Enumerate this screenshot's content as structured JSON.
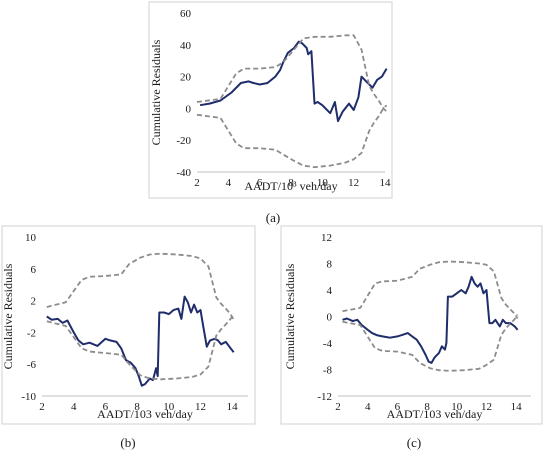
{
  "figure": {
    "captions": [
      "(a)",
      "(b)",
      "(c)"
    ]
  },
  "colors": {
    "series_line": "#1f2d6b",
    "bound_line": "#8c8c8c",
    "frame": "#d0d0d0",
    "text": "#1a1a1a"
  },
  "chart_data": [
    {
      "type": "line",
      "caption": "(a)",
      "xlabel": "AADT/10³ veh/day",
      "ylabel": "Cumulative Residuals",
      "xlim": [
        2,
        14
      ],
      "ylim": [
        -40,
        60
      ],
      "xticks": [
        2,
        4,
        6,
        8,
        10,
        12,
        14
      ],
      "yticks": [
        -40,
        -20,
        0,
        20,
        40,
        60
      ],
      "grid": false,
      "series": [
        {
          "style": "solid",
          "x": [
            2.2,
            2.8,
            3.5,
            4.2,
            4.8,
            5.3,
            5.6,
            6.0,
            6.5,
            7.0,
            7.3,
            7.5,
            7.8,
            8.2,
            8.5,
            8.7,
            9.0,
            9.1,
            9.3,
            9.5,
            9.7,
            10.0,
            10.5,
            10.8,
            11.0,
            11.3,
            11.7,
            12.0,
            12.3,
            12.5,
            12.8,
            13.2,
            13.5,
            13.8,
            14.1
          ],
          "y": [
            2,
            3,
            5,
            10,
            16,
            17,
            16,
            15,
            16,
            20,
            24,
            29,
            35,
            38,
            42,
            41,
            38,
            34,
            36,
            3,
            4,
            2,
            -3,
            4,
            -8,
            -2,
            3,
            -1,
            7,
            20,
            17,
            13,
            18,
            20,
            25
          ]
        },
        {
          "style": "dashed",
          "x": [
            2.0,
            3.5,
            4.5,
            5.0,
            6.0,
            7.0,
            7.5,
            8.2,
            8.8,
            9.5,
            10.5,
            11.5,
            12.0,
            12.5,
            13.0,
            13.3,
            13.6,
            13.9,
            14.1
          ],
          "y": [
            4,
            6,
            22,
            25,
            25,
            26,
            29,
            37,
            44,
            45,
            45,
            46,
            46,
            37,
            14,
            9,
            5,
            0,
            -2
          ]
        },
        {
          "style": "dashed",
          "x": [
            2.0,
            3.5,
            4.5,
            5.0,
            6.0,
            7.0,
            7.5,
            8.2,
            8.8,
            9.5,
            10.5,
            11.5,
            12.0,
            12.5,
            13.0,
            13.3,
            13.6,
            13.9,
            14.1
          ],
          "y": [
            -4,
            -6,
            -22,
            -25,
            -25,
            -26,
            -29,
            -33,
            -36,
            -37,
            -36,
            -34,
            -32,
            -28,
            -14,
            -9,
            -5,
            0,
            2
          ]
        }
      ]
    },
    {
      "type": "line",
      "caption": "(b)",
      "xlabel": "AADT/103 veh/day",
      "ylabel": "Cumulative Residuals",
      "xlim": [
        2,
        15
      ],
      "ylim": [
        -10,
        10
      ],
      "xticks": [
        2,
        4,
        6,
        8,
        10,
        12,
        14
      ],
      "yticks": [
        -10,
        -6,
        -2,
        2,
        6,
        10
      ],
      "grid": false,
      "series": [
        {
          "style": "solid",
          "x": [
            2.3,
            2.6,
            3.0,
            3.3,
            3.6,
            4.0,
            4.3,
            4.6,
            5.0,
            5.5,
            6.0,
            6.3,
            6.7,
            7.0,
            7.3,
            7.6,
            7.9,
            8.1,
            8.3,
            8.5,
            8.8,
            9.0,
            9.2,
            9.3,
            9.4,
            9.7,
            10.0,
            10.3,
            10.6,
            10.8,
            11.0,
            11.2,
            11.4,
            11.6,
            11.8,
            12.0,
            12.2,
            12.4,
            12.6,
            12.9,
            13.1,
            13.3,
            13.6,
            13.9,
            14.1
          ],
          "y": [
            0,
            -0.4,
            -0.3,
            -0.8,
            -0.5,
            -2.0,
            -3.0,
            -3.5,
            -3.3,
            -3.7,
            -2.8,
            -3.0,
            -3.2,
            -4.0,
            -5.5,
            -5.8,
            -6.5,
            -7.5,
            -8.7,
            -8.5,
            -7.8,
            -8.0,
            -6.5,
            -7.5,
            0.5,
            0.5,
            0.3,
            0.8,
            1.0,
            -0.3,
            2.5,
            1.8,
            0.5,
            1.5,
            0.5,
            0.8,
            -1.5,
            -3.8,
            -3.0,
            -2.8,
            -3.0,
            -3.5,
            -3.2,
            -4.0,
            -4.5
          ]
        },
        {
          "style": "dashed",
          "x": [
            2.3,
            3.5,
            4.5,
            5.0,
            6.0,
            7.0,
            7.5,
            8.2,
            8.8,
            9.5,
            10.5,
            11.5,
            12.0,
            12.5,
            13.0,
            13.3,
            13.6,
            13.9,
            14.1
          ],
          "y": [
            1.2,
            1.8,
            4.6,
            5.0,
            5.1,
            5.3,
            6.6,
            7.4,
            7.8,
            7.9,
            7.8,
            7.6,
            7.3,
            6.3,
            2.4,
            1.6,
            1.0,
            0.3,
            -0.4
          ]
        },
        {
          "style": "dashed",
          "x": [
            2.3,
            3.5,
            4.5,
            5.0,
            6.0,
            7.0,
            7.5,
            8.2,
            8.8,
            9.5,
            10.5,
            11.5,
            12.0,
            12.5,
            13.0,
            13.3,
            13.6,
            13.9,
            14.1
          ],
          "y": [
            -0.6,
            -1.2,
            -4.0,
            -4.4,
            -4.6,
            -4.8,
            -6.0,
            -7.4,
            -7.8,
            -7.9,
            -7.8,
            -7.6,
            -7.3,
            -6.3,
            -2.4,
            -1.6,
            -1.0,
            -0.3,
            0.4
          ]
        }
      ]
    },
    {
      "type": "line",
      "caption": "(c)",
      "xlabel": "AADT/103 veh/day",
      "ylabel": "Cumulative Residuals",
      "xlim": [
        2,
        15
      ],
      "ylim": [
        -12,
        12
      ],
      "xticks": [
        2,
        4,
        6,
        8,
        10,
        12,
        14
      ],
      "yticks": [
        -12,
        -8,
        -4,
        0,
        4,
        8,
        12
      ],
      "grid": false,
      "series": [
        {
          "style": "solid",
          "x": [
            2.3,
            2.6,
            3.0,
            3.3,
            3.6,
            4.0,
            4.3,
            4.6,
            5.0,
            5.5,
            6.0,
            6.3,
            6.7,
            7.0,
            7.3,
            7.6,
            7.9,
            8.1,
            8.3,
            8.5,
            8.8,
            9.0,
            9.2,
            9.3,
            9.4,
            9.7,
            10.0,
            10.3,
            10.6,
            10.8,
            11.0,
            11.2,
            11.4,
            11.6,
            11.8,
            12.0,
            12.2,
            12.4,
            12.6,
            12.9,
            13.1,
            13.3,
            13.6,
            13.9,
            14.1
          ],
          "y": [
            -0.5,
            -0.3,
            -0.7,
            -0.5,
            -1.3,
            -2.0,
            -2.5,
            -2.8,
            -3.0,
            -3.2,
            -3.0,
            -2.8,
            -2.5,
            -3.0,
            -3.5,
            -4.5,
            -5.8,
            -6.8,
            -7.0,
            -6.2,
            -5.5,
            -4.5,
            -5.0,
            -4.0,
            3.0,
            3.0,
            3.5,
            4.0,
            3.5,
            4.5,
            6.0,
            5.0,
            4.5,
            5.0,
            3.5,
            4.0,
            -1.0,
            -1.0,
            -0.5,
            -1.5,
            -0.5,
            -1.0,
            -1.0,
            -1.5,
            -2.0
          ]
        },
        {
          "style": "dashed",
          "x": [
            2.3,
            3.5,
            4.5,
            5.0,
            6.0,
            7.0,
            7.5,
            8.2,
            8.8,
            9.5,
            10.5,
            11.5,
            12.0,
            12.5,
            13.0,
            13.3,
            13.6,
            13.9,
            14.1
          ],
          "y": [
            0.8,
            1.3,
            5.0,
            5.3,
            5.4,
            6.0,
            7.2,
            7.8,
            8.2,
            8.3,
            8.2,
            8.0,
            7.8,
            6.8,
            2.8,
            1.8,
            1.1,
            0.4,
            -0.3
          ]
        },
        {
          "style": "dashed",
          "x": [
            2.3,
            3.5,
            4.5,
            5.0,
            6.0,
            7.0,
            7.5,
            8.2,
            8.8,
            9.5,
            10.5,
            11.5,
            12.0,
            12.5,
            13.0,
            13.3,
            13.6,
            13.9,
            14.1
          ],
          "y": [
            -0.8,
            -1.3,
            -4.8,
            -5.2,
            -5.3,
            -5.8,
            -7.0,
            -7.8,
            -8.1,
            -8.2,
            -8.1,
            -7.9,
            -7.3,
            -6.5,
            -2.8,
            -1.8,
            -1.1,
            -0.4,
            0.3
          ]
        }
      ]
    }
  ]
}
